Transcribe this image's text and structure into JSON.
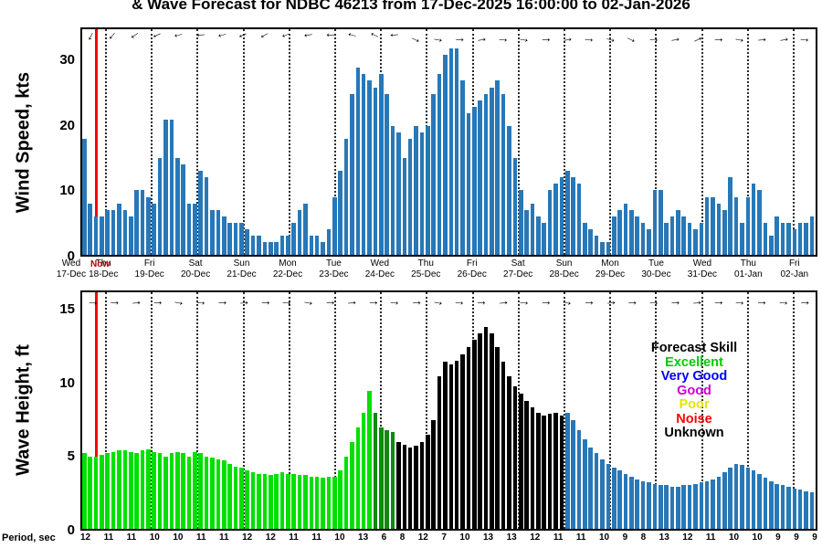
{
  "title": "& Wave Forecast for NDBC 46213 from 17-Dec-2025 16:00:00 to 02-Jan-2026",
  "x_axis": {
    "now_label": "Now",
    "now_frac": 0.018,
    "n_days": 16,
    "day_labels": [
      {
        "dow": "Wed",
        "date": "17-Dec"
      },
      {
        "dow": "Thu",
        "date": "18-Dec"
      },
      {
        "dow": "Fri",
        "date": "19-Dec"
      },
      {
        "dow": "Sat",
        "date": "20-Dec"
      },
      {
        "dow": "Sun",
        "date": "21-Dec"
      },
      {
        "dow": "Mon",
        "date": "22-Dec"
      },
      {
        "dow": "Tue",
        "date": "23-Dec"
      },
      {
        "dow": "Wed",
        "date": "24-Dec"
      },
      {
        "dow": "Thu",
        "date": "25-Dec"
      },
      {
        "dow": "Fri",
        "date": "26-Dec"
      },
      {
        "dow": "Sat",
        "date": "27-Dec"
      },
      {
        "dow": "Sun",
        "date": "28-Dec"
      },
      {
        "dow": "Mon",
        "date": "29-Dec"
      },
      {
        "dow": "Tue",
        "date": "30-Dec"
      },
      {
        "dow": "Wed",
        "date": "31-Dec"
      },
      {
        "dow": "Thu",
        "date": "01-Jan"
      },
      {
        "dow": "Fri",
        "date": "02-Jan"
      }
    ]
  },
  "chart_data": [
    {
      "name": "wind",
      "type": "bar",
      "ylabel": "Wind Speed, kts",
      "ylim": [
        0,
        35
      ],
      "yticks": [
        0,
        10,
        20,
        30
      ],
      "bar_color": "#2878b8",
      "grid": "vertical-dotted-daily",
      "values": [
        18,
        8,
        6,
        6,
        7,
        7,
        8,
        7,
        6,
        10,
        10,
        9,
        8,
        15,
        21,
        21,
        15,
        14,
        8,
        8,
        13,
        12,
        7,
        7,
        6,
        5,
        5,
        5,
        4,
        3,
        3,
        2,
        2,
        2,
        3,
        3,
        5,
        7,
        8,
        3,
        3,
        2,
        4,
        9,
        13,
        18,
        25,
        29,
        28,
        27,
        26,
        28,
        25,
        20,
        19,
        15,
        18,
        20,
        19,
        20,
        25,
        28,
        31,
        32,
        32,
        27,
        22,
        23,
        24,
        25,
        26,
        27,
        25,
        20,
        15,
        10,
        7,
        8,
        6,
        5,
        10,
        11,
        12,
        13,
        12,
        11,
        5,
        4,
        3,
        2,
        2,
        6,
        7,
        8,
        7,
        6,
        5,
        4,
        10,
        10,
        5,
        6,
        7,
        6,
        5,
        4,
        5,
        9,
        9,
        8,
        7,
        12,
        9,
        5,
        9,
        11,
        10,
        5,
        3,
        6,
        5,
        5,
        4,
        5,
        5,
        6
      ],
      "arrow_angles_deg": [
        115,
        130,
        145,
        155,
        165,
        175,
        165,
        155,
        150,
        160,
        170,
        180,
        195,
        205,
        175,
        25,
        10,
        0,
        350,
        5,
        10,
        0,
        350,
        5,
        15,
        25,
        5,
        350,
        335,
        0,
        10,
        355,
        350,
        5
      ]
    },
    {
      "name": "wave",
      "type": "bar",
      "ylabel": "Wave Height, ft",
      "ylim": [
        0,
        16.3
      ],
      "yticks": [
        0,
        5,
        10,
        15
      ],
      "grid": "vertical-dotted-daily",
      "values": [
        5.2,
        5.0,
        5.0,
        5.1,
        5.2,
        5.3,
        5.4,
        5.4,
        5.3,
        5.2,
        5.4,
        5.5,
        5.3,
        5.2,
        5.0,
        5.2,
        5.3,
        5.2,
        5.0,
        5.3,
        5.2,
        5.0,
        4.9,
        4.8,
        4.7,
        4.5,
        4.3,
        4.2,
        4.0,
        3.9,
        3.8,
        3.8,
        3.7,
        3.8,
        3.9,
        3.8,
        3.8,
        3.7,
        3.7,
        3.6,
        3.6,
        3.5,
        3.6,
        3.6,
        4.0,
        5.0,
        6.0,
        7.0,
        8.0,
        9.5,
        8.0,
        7.0,
        6.8,
        6.7,
        6.0,
        5.8,
        5.6,
        5.7,
        6.0,
        6.5,
        7.5,
        10.5,
        11.5,
        11.3,
        11.6,
        12.0,
        12.5,
        13.0,
        13.5,
        13.9,
        13.5,
        12.5,
        11.5,
        10.5,
        9.8,
        9.3,
        8.8,
        8.4,
        8.0,
        7.8,
        7.9,
        8.0,
        7.8,
        8.0,
        7.5,
        6.8,
        6.2,
        5.6,
        5.2,
        4.8,
        4.5,
        4.2,
        4.0,
        3.8,
        3.6,
        3.4,
        3.3,
        3.2,
        3.1,
        3.0,
        3.0,
        2.9,
        2.9,
        3.0,
        3.0,
        3.1,
        3.2,
        3.3,
        3.4,
        3.6,
        3.9,
        4.2,
        4.5,
        4.4,
        4.2,
        4.0,
        3.8,
        3.5,
        3.3,
        3.1,
        3.0,
        2.9,
        2.8,
        2.7,
        2.6,
        2.5
      ],
      "skill_ranges": [
        {
          "from": 0,
          "to": 49,
          "skill": "excellent"
        },
        {
          "from": 50,
          "to": 53,
          "skill": "excellent_dark"
        },
        {
          "from": 54,
          "to": 82,
          "skill": "unknown"
        },
        {
          "from": 83,
          "to": 125,
          "skill": "very_good"
        }
      ],
      "skill_bar_colors": {
        "excellent": "#00e000",
        "excellent_dark": "#0c8a0c",
        "unknown": "#000000",
        "very_good": "#2878b8"
      },
      "arrow_angles_deg": [
        5,
        0,
        355,
        0,
        10,
        5,
        0,
        355,
        0,
        5,
        10,
        0,
        355,
        0,
        5,
        0,
        10,
        5,
        0,
        355,
        5,
        0,
        10,
        0,
        355,
        0,
        5,
        0,
        355,
        0,
        5,
        0,
        5,
        0
      ],
      "period_label": "Period, sec",
      "periods": [
        12,
        11,
        11,
        10,
        10,
        11,
        11,
        12,
        12,
        11,
        11,
        10,
        13,
        6,
        8,
        12,
        7,
        10,
        13,
        13,
        12,
        11,
        11,
        10,
        9,
        8,
        13,
        12,
        11,
        10,
        10,
        9,
        9,
        9
      ],
      "legend": {
        "title": "Forecast Skill",
        "entries": [
          {
            "label": "Excellent",
            "color": "#00cc00"
          },
          {
            "label": "Very Good",
            "color": "#0000ff"
          },
          {
            "label": "Good",
            "color": "#cc00cc"
          },
          {
            "label": "Poor",
            "color": "#e4e400"
          },
          {
            "label": "Noise",
            "color": "#ff0000"
          },
          {
            "label": "Unknown",
            "color": "#000000"
          }
        ]
      }
    }
  ]
}
